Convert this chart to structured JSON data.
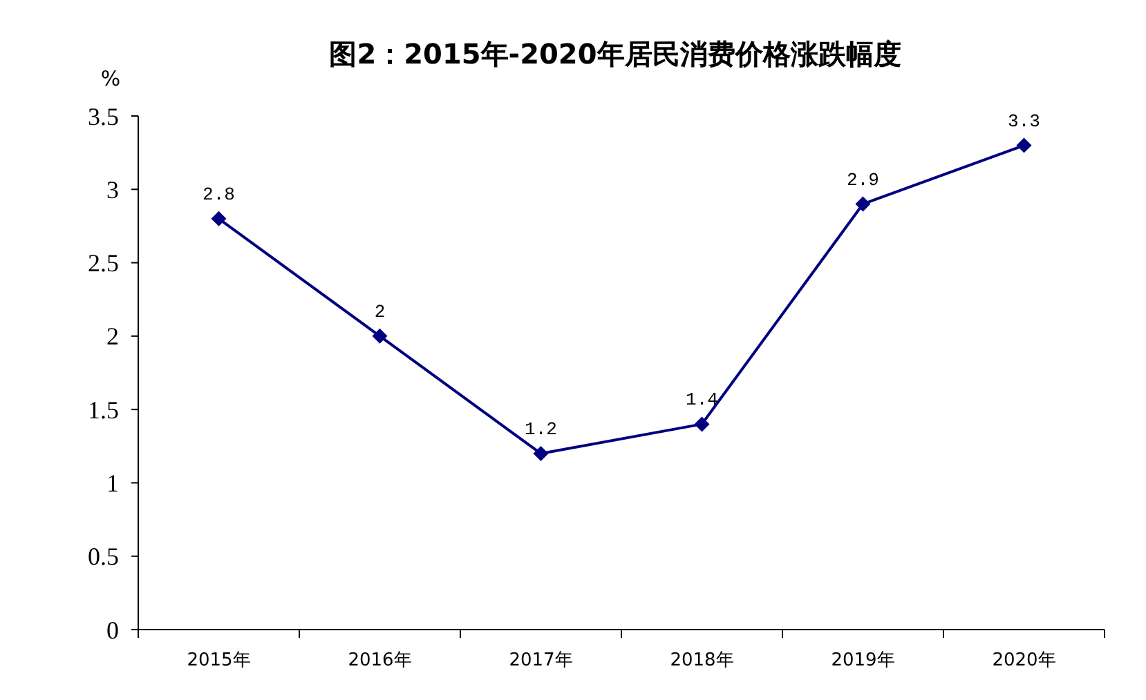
{
  "chart_data": {
    "type": "line",
    "title": "图2：2015年-2020年居民消费价格涨跌幅度",
    "ylabel": "%",
    "categories": [
      "2015年",
      "2016年",
      "2017年",
      "2018年",
      "2019年",
      "2020年"
    ],
    "series": [
      {
        "color": "#000080",
        "values": [
          2.8,
          2,
          1.2,
          1.4,
          2.9,
          3.3
        ]
      }
    ],
    "ylim": [
      0,
      3.5
    ],
    "yticks": [
      0,
      0.5,
      1,
      1.5,
      2,
      2.5,
      3,
      3.5
    ],
    "grid": false,
    "marker": "diamond",
    "line_style": "solid",
    "data_labels": true
  }
}
